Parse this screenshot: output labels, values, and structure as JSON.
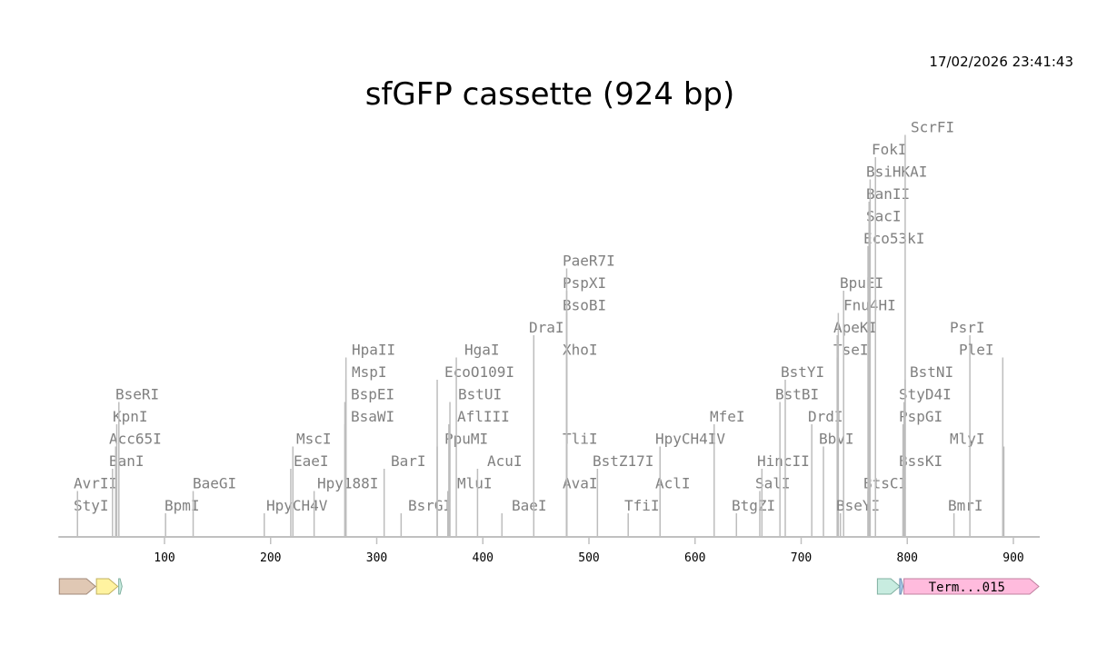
{
  "timestamp": "17/02/2026 23:41:43",
  "title": "sfGFP cassette (924 bp)",
  "sequence_length": 924,
  "axis_ticks": [
    100,
    200,
    300,
    400,
    500,
    600,
    700,
    800,
    900
  ],
  "sites": [
    {
      "name": "StyI",
      "position": 18
    },
    {
      "name": "AvrII",
      "position": 18
    },
    {
      "name": "BanI",
      "position": 51
    },
    {
      "name": "Acc65I",
      "position": 54
    },
    {
      "name": "KpnI",
      "position": 55
    },
    {
      "name": "BseRI",
      "position": 57
    },
    {
      "name": "BpmI",
      "position": 101
    },
    {
      "name": "BaeGI",
      "position": 127
    },
    {
      "name": "HpyCH4V",
      "position": 194
    },
    {
      "name": "EaeI",
      "position": 219
    },
    {
      "name": "MscI",
      "position": 221
    },
    {
      "name": "Hpy188I",
      "position": 241
    },
    {
      "name": "BsaWI",
      "position": 270
    },
    {
      "name": "BspEI",
      "position": 270
    },
    {
      "name": "MspI",
      "position": 271
    },
    {
      "name": "HpaII",
      "position": 271
    },
    {
      "name": "BarI",
      "position": 307
    },
    {
      "name": "BsrGI",
      "position": 323
    },
    {
      "name": "PpuMI",
      "position": 357
    },
    {
      "name": "EcoO109I",
      "position": 357
    },
    {
      "name": "MluI",
      "position": 367
    },
    {
      "name": "AflIII",
      "position": 368
    },
    {
      "name": "BstUI",
      "position": 369
    },
    {
      "name": "HgaI",
      "position": 375
    },
    {
      "name": "AcuI",
      "position": 395
    },
    {
      "name": "BaeI",
      "position": 418
    },
    {
      "name": "DraI",
      "position": 448
    },
    {
      "name": "AvaI",
      "position": 479
    },
    {
      "name": "TliI",
      "position": 479
    },
    {
      "name": "XhoI",
      "position": 479
    },
    {
      "name": "BsoBI",
      "position": 479
    },
    {
      "name": "PspXI",
      "position": 479
    },
    {
      "name": "PaeR7I",
      "position": 479
    },
    {
      "name": "BstZ17I",
      "position": 508
    },
    {
      "name": "TfiI",
      "position": 537
    },
    {
      "name": "AclI",
      "position": 567
    },
    {
      "name": "HpyCH4IV",
      "position": 567
    },
    {
      "name": "MfeI",
      "position": 618
    },
    {
      "name": "BtgZI",
      "position": 639
    },
    {
      "name": "SalI",
      "position": 661
    },
    {
      "name": "HincII",
      "position": 663
    },
    {
      "name": "BstBI",
      "position": 680
    },
    {
      "name": "BstYI",
      "position": 685
    },
    {
      "name": "DrdI",
      "position": 710
    },
    {
      "name": "BbvI",
      "position": 721
    },
    {
      "name": "TseI",
      "position": 734
    },
    {
      "name": "ApeKI",
      "position": 734
    },
    {
      "name": "Fnu4HI",
      "position": 735
    },
    {
      "name": "BseYI",
      "position": 737
    },
    {
      "name": "BpuEI",
      "position": 740
    },
    {
      "name": "BtsCI",
      "position": 763
    },
    {
      "name": "Eco53kI",
      "position": 763
    },
    {
      "name": "SacI",
      "position": 764
    },
    {
      "name": "BanII",
      "position": 764
    },
    {
      "name": "BsiHKAI",
      "position": 765
    },
    {
      "name": "FokI",
      "position": 770
    },
    {
      "name": "BssKI",
      "position": 796
    },
    {
      "name": "PspGI",
      "position": 796
    },
    {
      "name": "StyD4I",
      "position": 797
    },
    {
      "name": "BstNI",
      "position": 798
    },
    {
      "name": "ScrFI",
      "position": 798
    },
    {
      "name": "BmrI",
      "position": 844
    },
    {
      "name": "MlyI",
      "position": 891
    },
    {
      "name": "PsrI",
      "position": 859
    },
    {
      "name": "PleI",
      "position": 890
    }
  ],
  "features": [
    {
      "label": "",
      "start": 1,
      "end": 35,
      "color": "#e0c8b4",
      "stroke": "#a08878"
    },
    {
      "label": "",
      "start": 36,
      "end": 56,
      "color": "#fff3a0",
      "stroke": "#c0b060"
    },
    {
      "label": "",
      "start": 57,
      "end": 60,
      "color": "#c8ece0",
      "stroke": "#80b0a0"
    },
    {
      "label": "",
      "start": 772,
      "end": 793,
      "color": "#c8ece0",
      "stroke": "#80b0a0"
    },
    {
      "label": "",
      "start": 793,
      "end": 796,
      "color": "#a8c8e8",
      "stroke": "#7090b0"
    },
    {
      "label": "Term...015",
      "start": 797,
      "end": 924,
      "color": "#ffbbdd",
      "stroke": "#c080a0"
    }
  ]
}
